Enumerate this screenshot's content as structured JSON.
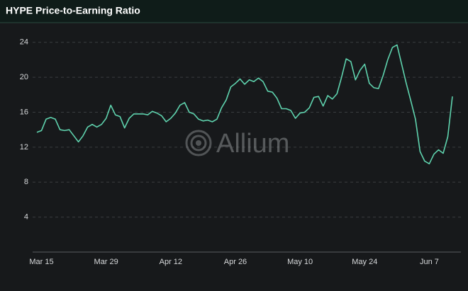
{
  "chart_data": {
    "type": "line",
    "title": "HYPE Price-to-Earning Ratio",
    "watermark": "Allium",
    "categories": [
      null,
      "Mar 15",
      null,
      null,
      null,
      null,
      null,
      null,
      null,
      null,
      null,
      null,
      null,
      null,
      null,
      "Mar 29",
      null,
      null,
      null,
      null,
      null,
      null,
      null,
      null,
      null,
      null,
      null,
      null,
      null,
      "Apr 12",
      null,
      null,
      null,
      null,
      null,
      null,
      null,
      null,
      null,
      null,
      null,
      null,
      null,
      "Apr 26",
      null,
      null,
      null,
      null,
      null,
      null,
      null,
      null,
      null,
      null,
      null,
      null,
      null,
      "May 10",
      null,
      null,
      null,
      null,
      null,
      null,
      null,
      null,
      null,
      null,
      null,
      null,
      null,
      "May 24",
      null,
      null,
      null,
      null,
      null,
      null,
      null,
      null,
      null,
      null,
      null,
      null,
      null,
      "Jun 7",
      null,
      null,
      null,
      null,
      null
    ],
    "series": [
      {
        "color": "#5fd3ae",
        "values": [
          13.7,
          13.9,
          15.2,
          15.4,
          15.2,
          14.0,
          13.9,
          14.0,
          13.3,
          12.6,
          13.3,
          14.3,
          14.6,
          14.3,
          14.6,
          15.3,
          16.8,
          15.7,
          15.5,
          14.2,
          15.3,
          15.8,
          15.8,
          15.8,
          15.7,
          16.1,
          15.9,
          15.6,
          14.9,
          15.3,
          15.9,
          16.8,
          17.1,
          16.0,
          15.8,
          15.2,
          15.0,
          15.1,
          14.9,
          15.2,
          16.5,
          17.4,
          18.9,
          19.3,
          19.8,
          19.2,
          19.7,
          19.5,
          19.9,
          19.5,
          18.4,
          18.3,
          17.6,
          16.4,
          16.4,
          16.2,
          15.3,
          15.9,
          16.0,
          16.5,
          17.7,
          17.8,
          16.7,
          17.9,
          17.5,
          18.1,
          20.0,
          22.1,
          21.8,
          19.7,
          20.8,
          21.5,
          19.3,
          18.8,
          18.7,
          20.2,
          22.0,
          23.4,
          23.7,
          21.5,
          19.3,
          17.3,
          15.2,
          11.5,
          10.4,
          10.1,
          11.2,
          11.7,
          11.3,
          13.2,
          17.8
        ]
      }
    ],
    "ylim": [
      0,
      26
    ],
    "yticks": [
      4,
      8,
      12,
      16,
      20,
      24
    ],
    "grid": true
  }
}
